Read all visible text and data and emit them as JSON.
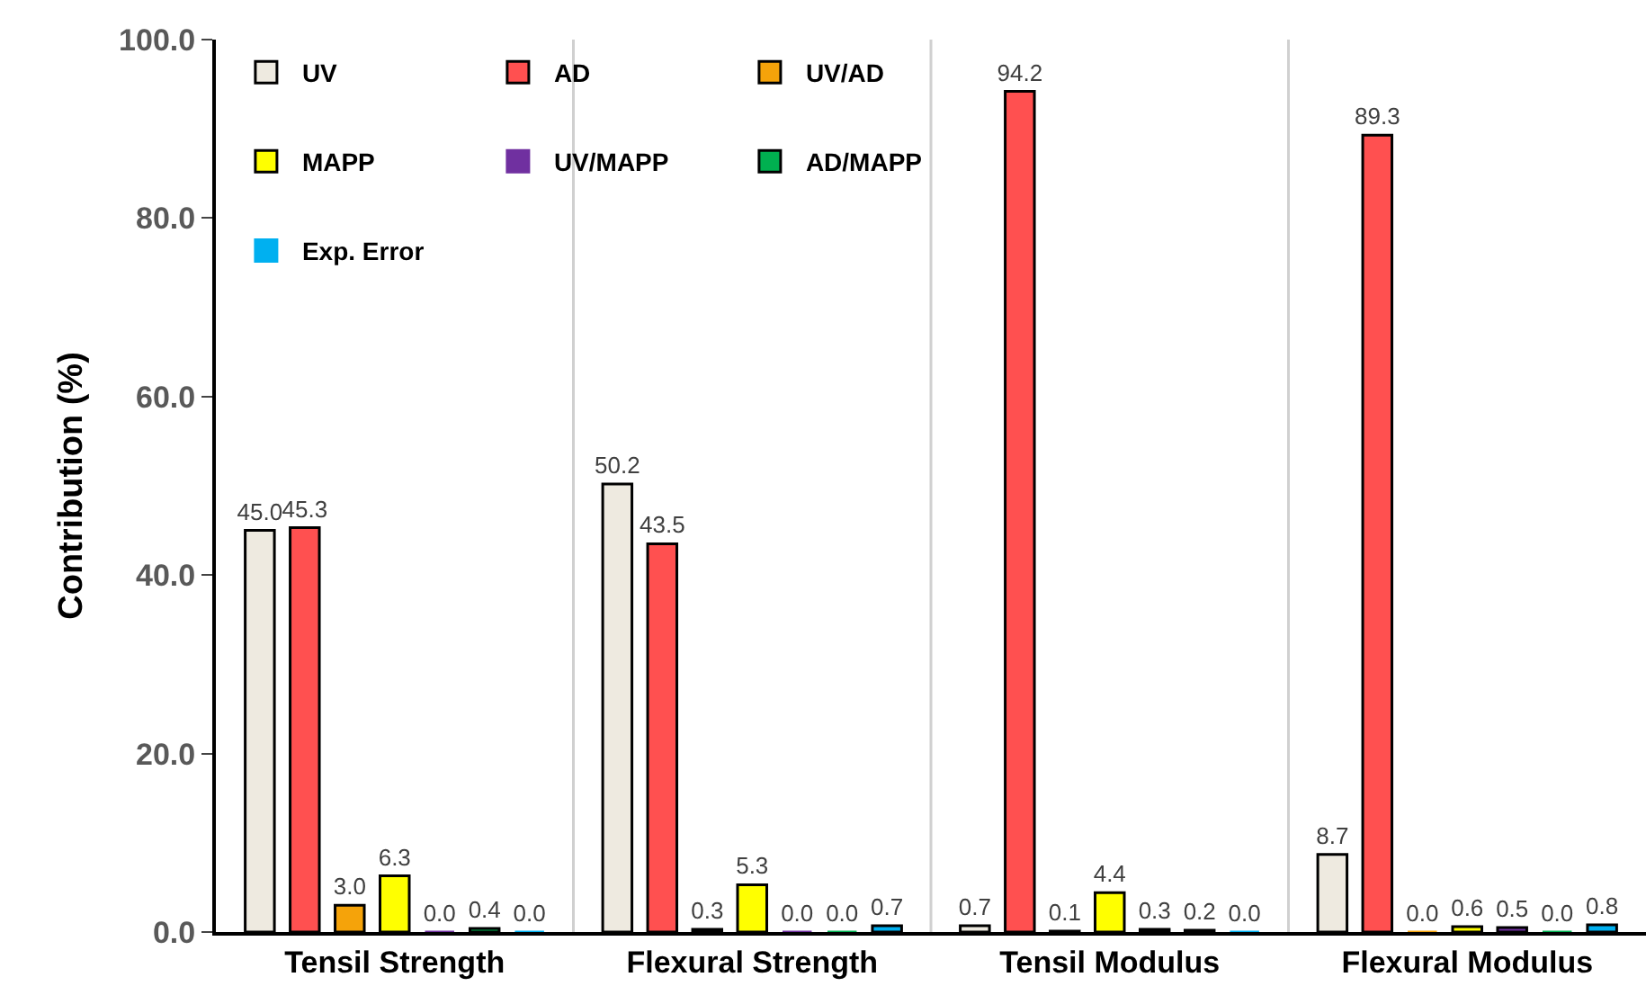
{
  "chart_data": {
    "type": "bar",
    "ylabel": "Contribution (%)",
    "categories": [
      "Tensil Strength",
      "Flexural Strength",
      "Tensil Modulus",
      "Flexural Modulus"
    ],
    "series": [
      {
        "name": "UV",
        "color": "#eeeae0",
        "values": [
          45.0,
          50.2,
          0.7,
          8.7
        ],
        "value_labels": [
          "45.0",
          "50.2",
          "0.7",
          "8.7"
        ]
      },
      {
        "name": "AD",
        "color": "#ff5050",
        "values": [
          45.3,
          43.5,
          94.2,
          89.3
        ],
        "value_labels": [
          "45.3",
          "43.5",
          "94.2",
          "89.3"
        ]
      },
      {
        "name": "UV/AD",
        "color": "#f5a30a",
        "values": [
          3.0,
          0.3,
          0.1,
          0.0
        ],
        "value_labels": [
          "3.0",
          "0.3",
          "0.1",
          "0.0"
        ]
      },
      {
        "name": "MAPP",
        "color": "#ffff00",
        "values": [
          6.3,
          5.3,
          4.4,
          0.6
        ],
        "value_labels": [
          "6.3",
          "5.3",
          "4.4",
          "0.6"
        ]
      },
      {
        "name": "UV/MAPP",
        "color": "#7030a0",
        "values": [
          0.0,
          0.0,
          0.3,
          0.5
        ],
        "value_labels": [
          "0.0",
          "0.0",
          "0.3",
          "0.5"
        ]
      },
      {
        "name": "AD/MAPP",
        "color": "#00b050",
        "values": [
          0.4,
          0.0,
          0.2,
          0.0
        ],
        "value_labels": [
          "0.4",
          "0.0",
          "0.2",
          "0.0"
        ]
      },
      {
        "name": "Exp. Error",
        "color": "#00b0f0",
        "values": [
          0.0,
          0.7,
          0.0,
          0.8
        ],
        "value_labels": [
          "0.0",
          "0.7",
          "0.0",
          "0.8"
        ]
      }
    ],
    "ylim": [
      0,
      100
    ],
    "yticks": [
      {
        "value": 0,
        "label": "0.0"
      },
      {
        "value": 20,
        "label": "20.0"
      },
      {
        "value": 40,
        "label": "40.0"
      },
      {
        "value": 60,
        "label": "60.0"
      },
      {
        "value": 80,
        "label": "80.0"
      },
      {
        "value": 100,
        "label": "100.0"
      }
    ],
    "grid": "x",
    "legend": "top left"
  }
}
